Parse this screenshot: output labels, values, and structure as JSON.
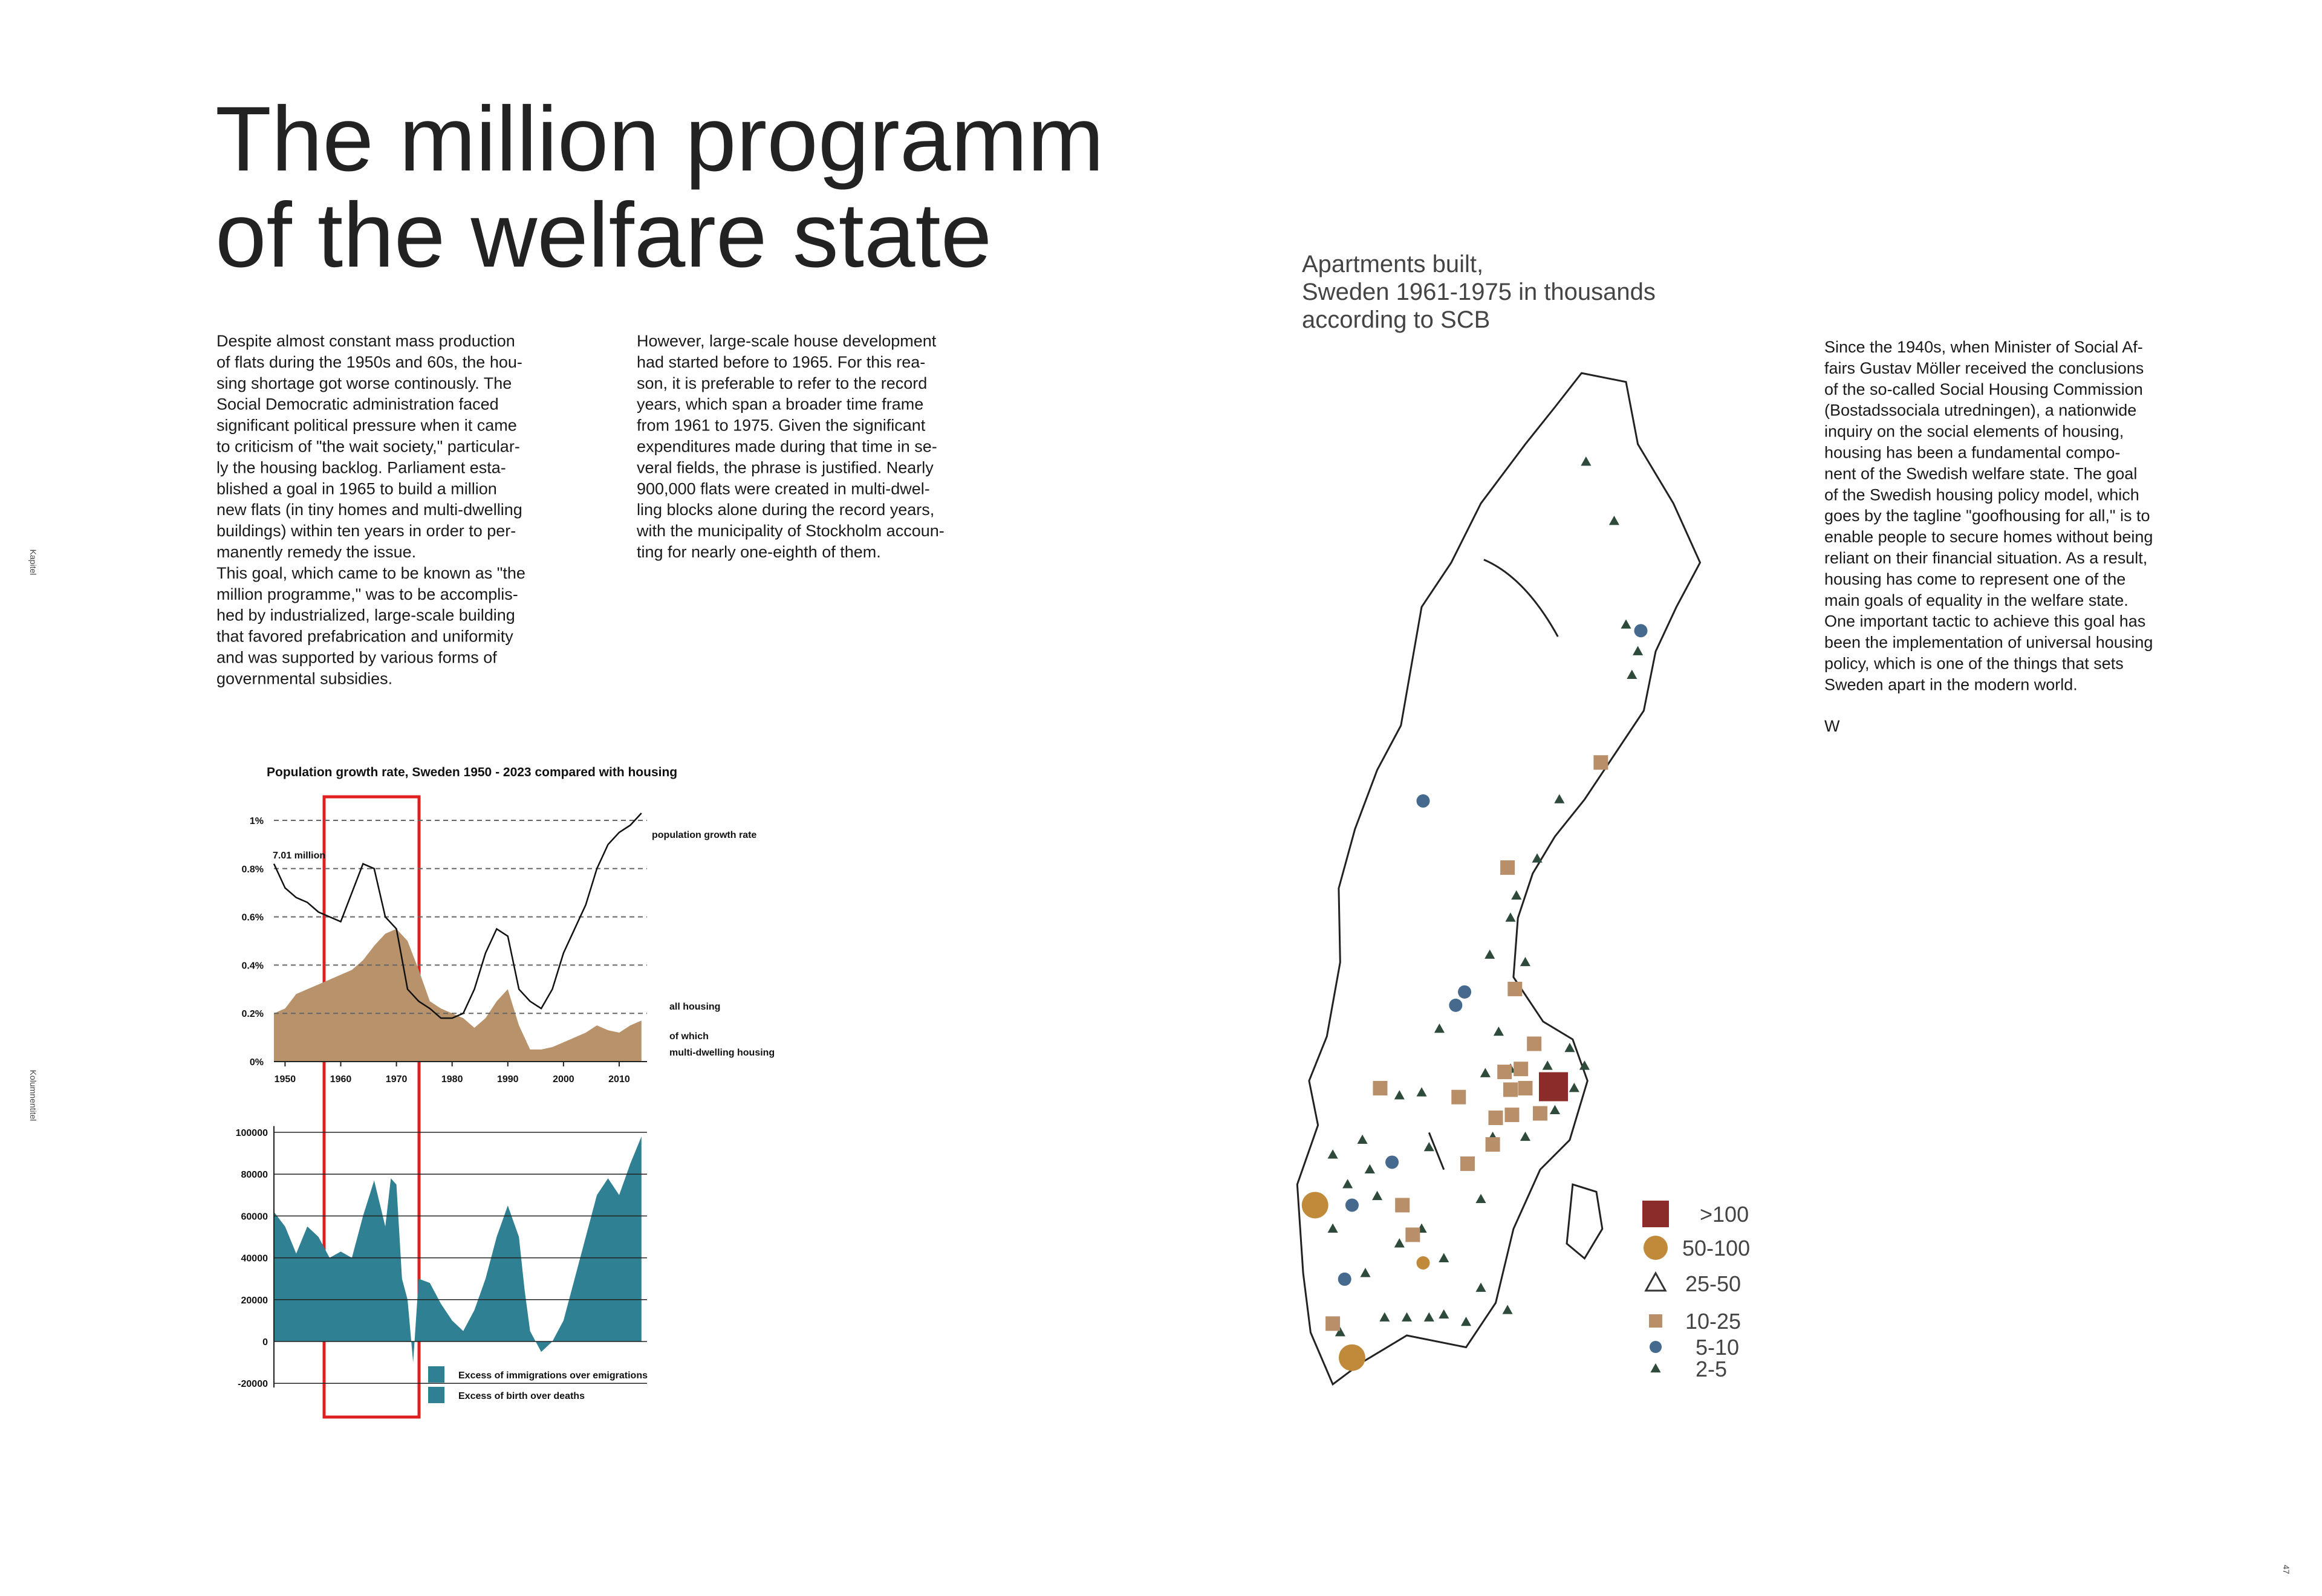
{
  "header": {
    "title_lines": [
      "The million programm",
      "of the welfare state"
    ]
  },
  "side_labels": {
    "chapter": "Kapitel",
    "running_title": "Kolumnentitel",
    "page_number": "47"
  },
  "columns": [
    {
      "lines": [
        "Despite almost constant mass production",
        "of flats during the 1950s and 60s, the hou-",
        "sing shortage got worse continously. The",
        "Social Democratic administration faced",
        "significant political pressure when it came",
        "to criticism of \"the wait society,\" particular-",
        "ly the housing backlog. Parliament esta-",
        "blished a goal in 1965 to build a million",
        "new flats (in tiny homes and multi-dwelling",
        "buildings) within ten years in order to per-",
        "manently remedy the issue.",
        "This goal, which came to be known as \"the",
        "million programme,\" was to be accomplis-",
        "hed by industrialized, large-scale building",
        "that favored prefabrication and uniformity",
        "and was supported by various forms of",
        "governmental subsidies."
      ]
    },
    {
      "lines": [
        "However, large-scale house development",
        "had started before to 1965. For this rea-",
        "son, it is preferable to refer to the record",
        "years, which span a broader time frame",
        "from 1961 to 1975. Given the significant",
        "expenditures made during that time in se-",
        "veral fields, the phrase is justified. Nearly",
        "900,000 flats were created in multi-dwel-",
        "ling blocks alone during the record years,",
        "with the municipality of Stockholm accoun-",
        "ting for nearly one-eighth of them."
      ]
    },
    {
      "lines": [
        "Since the 1940s, when Minister of Social Af-",
        "fairs Gustav Möller received the conclusions",
        "of the so-called Social Housing Commission",
        "(Bostadssociala utredningen), a nationwide",
        "inquiry on the social elements of housing,",
        "housing has been a fundamental compo-",
        "nent of the Swedish welfare state. The goal",
        "of the Swedish housing policy model, which",
        "goes by the tagline \"goofhousing for all,\" is to",
        "enable people to secure homes without being",
        "reliant on their financial situation. As a result,",
        "housing has come to represent one of the",
        "main goals of equality in the welfare state.",
        "One important tactic to achieve this goal has",
        "been the implementation of universal housing",
        "policy, which is one of the things that sets",
        "Sweden apart in the modern world."
      ],
      "signature": "W"
    }
  ],
  "chart_data": [
    {
      "type": "line",
      "title": "Population growth rate, Sweden 1950 - 2023 compared with housing",
      "x": [
        1948,
        1950,
        1952,
        1954,
        1956,
        1958,
        1960,
        1962,
        1964,
        1966,
        1968,
        1970,
        1972,
        1974,
        1976,
        1978,
        1980,
        1982,
        1984,
        1986,
        1988,
        1990,
        1992,
        1994,
        1996,
        1998,
        2000,
        2002,
        2004,
        2006,
        2008,
        2010,
        2012,
        2014
      ],
      "series": [
        {
          "name": "population growth rate",
          "color": "#111111",
          "values": [
            0.82,
            0.72,
            0.68,
            0.66,
            0.62,
            0.6,
            0.58,
            0.7,
            0.82,
            0.8,
            0.6,
            0.55,
            0.3,
            0.25,
            0.22,
            0.18,
            0.18,
            0.2,
            0.3,
            0.45,
            0.55,
            0.52,
            0.3,
            0.25,
            0.22,
            0.3,
            0.45,
            0.55,
            0.65,
            0.8,
            0.9,
            0.95,
            0.98,
            1.03
          ]
        },
        {
          "name": "all housing",
          "color": "#b8926a",
          "fill": "area",
          "values": [
            0.2,
            0.22,
            0.28,
            0.3,
            0.32,
            0.34,
            0.36,
            0.38,
            0.42,
            0.48,
            0.53,
            0.55,
            0.5,
            0.38,
            0.25,
            0.22,
            0.2,
            0.18,
            0.14,
            0.18,
            0.25,
            0.3,
            0.15,
            0.05,
            0.05,
            0.06,
            0.08,
            0.1,
            0.12,
            0.15,
            0.13,
            0.12,
            0.15,
            0.17
          ]
        }
      ],
      "annotations": [
        "7.01 million",
        "of which",
        "multi-dwelling housing"
      ],
      "xlim": [
        1948,
        2015
      ],
      "xticks": [
        1950,
        1960,
        1970,
        1980,
        1990,
        2000,
        2010
      ],
      "ylim": [
        0,
        1.05
      ],
      "yticks": [
        {
          "value": 0,
          "label": "0%"
        },
        {
          "value": 0.2,
          "label": "0.2%"
        },
        {
          "value": 0.4,
          "label": "0.4%"
        },
        {
          "value": 0.6,
          "label": "0.6%"
        },
        {
          "value": 0.8,
          "label": "0.8%"
        },
        {
          "value": 1,
          "label": "1%"
        }
      ],
      "grid": true
    },
    {
      "type": "area",
      "x": [
        1948,
        1950,
        1952,
        1954,
        1956,
        1958,
        1960,
        1962,
        1964,
        1966,
        1968,
        1969,
        1970,
        1971,
        1972,
        1973,
        1974,
        1976,
        1978,
        1980,
        1982,
        1984,
        1986,
        1988,
        1990,
        1992,
        1993,
        1994,
        1996,
        1998,
        2000,
        2002,
        2004,
        2006,
        2008,
        2010,
        2012,
        2014
      ],
      "values": [
        62000,
        55000,
        42000,
        55000,
        50000,
        40000,
        43000,
        40000,
        60000,
        77000,
        55000,
        78000,
        75000,
        30000,
        20000,
        -10000,
        30000,
        28000,
        18000,
        10000,
        5000,
        15000,
        30000,
        50000,
        65000,
        50000,
        25000,
        5000,
        -5000,
        0,
        10000,
        30000,
        50000,
        70000,
        78000,
        70000,
        85000,
        98000
      ],
      "color": "#2f8092",
      "legend": [
        "Excess of immigrations over emigrations",
        "Excess of birth over deaths"
      ],
      "xlim": [
        1948,
        2015
      ],
      "ylim": [
        -22000,
        103000
      ],
      "yticks": [
        -20000,
        0,
        20000,
        40000,
        60000,
        80000,
        100000
      ],
      "grid": true
    }
  ],
  "map": {
    "title_lines": [
      "Apartments built,",
      "Sweden 1961-1975 in thousands",
      "according to SCB"
    ],
    "legend": [
      ">100",
      "50-100",
      "25-50",
      "10-25",
      "5-10",
      "2-5"
    ]
  }
}
